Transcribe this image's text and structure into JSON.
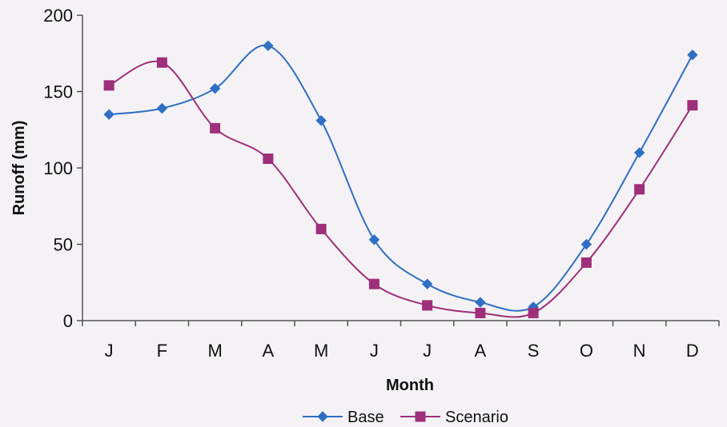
{
  "chart_data": {
    "type": "line",
    "categories": [
      "J",
      "F",
      "M",
      "A",
      "M",
      "J",
      "J",
      "A",
      "S",
      "O",
      "N",
      "D"
    ],
    "series": [
      {
        "name": "Base",
        "color": "#2f6fc4",
        "marker": "diamond",
        "values": [
          135,
          139,
          152,
          180,
          131,
          53,
          24,
          12,
          9,
          50,
          110,
          174
        ]
      },
      {
        "name": "Scenario",
        "color": "#9e2f7a",
        "marker": "square",
        "values": [
          154,
          169,
          126,
          106,
          60,
          24,
          10,
          5,
          5,
          38,
          86,
          141
        ]
      }
    ],
    "xlabel": "Month",
    "ylabel": "Runoff (mm)",
    "ylim": [
      0,
      200
    ],
    "yticks": [
      0,
      50,
      100,
      150,
      200
    ],
    "grid": false,
    "legend_position": "bottom",
    "smooth": true
  }
}
